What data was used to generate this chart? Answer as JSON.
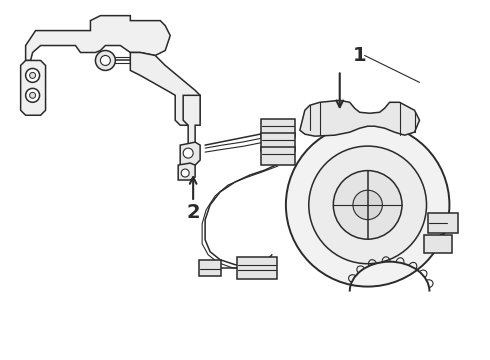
{
  "background_color": "#ffffff",
  "line_color": "#2a2a2a",
  "label1": "1",
  "label2": "2",
  "figsize": [
    4.9,
    3.6
  ],
  "dpi": 100,
  "border_color": "#cccccc"
}
